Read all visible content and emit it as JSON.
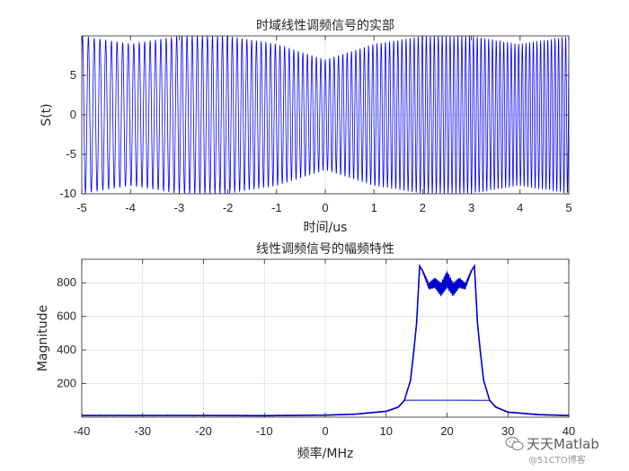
{
  "chart_data": [
    {
      "type": "line",
      "title": "时域线性调频信号的实部",
      "xlabel": "时间/us",
      "ylabel": "S(t)",
      "xlim": [
        -5,
        5
      ],
      "ylim": [
        -10,
        10
      ],
      "xticks": [
        -5,
        -4,
        -3,
        -2,
        -1,
        0,
        1,
        2,
        3,
        4,
        5
      ],
      "yticks": [
        -10,
        -5,
        0,
        5
      ],
      "grid": true,
      "line_color": "#0000ff",
      "series": [
        {
          "signal": "linear-frequency-modulated chirp, real part",
          "amplitude": 10,
          "bandwidth_MHz": 10,
          "center_frequency_MHz": 20,
          "pulse_width_us": 10,
          "x": [
            -5,
            -4,
            -3,
            -2,
            -1,
            0,
            1,
            2,
            3,
            4,
            5
          ],
          "envelope": [
            10,
            9,
            10,
            10,
            9,
            7,
            9,
            10,
            10,
            9,
            10
          ]
        }
      ]
    },
    {
      "type": "line",
      "title": "线性调频信号的幅频特性",
      "xlabel": "频率/MHz",
      "ylabel": "Magnitude",
      "xlim": [
        -40,
        40
      ],
      "ylim": [
        0,
        940
      ],
      "xticks": [
        -40,
        -30,
        -20,
        -10,
        0,
        10,
        20,
        30,
        40
      ],
      "yticks": [
        200,
        400,
        600,
        800
      ],
      "grid": true,
      "line_color": "#0000cc",
      "series": [
        {
          "x": [
            -40,
            -30,
            -20,
            -10,
            0,
            5,
            10,
            12,
            13,
            14,
            14.5,
            15,
            15.5,
            16,
            17,
            18,
            19,
            20,
            21,
            22,
            23,
            24,
            24.5,
            25,
            25.5,
            26,
            27,
            28,
            30,
            35,
            40
          ],
          "y": [
            10,
            10,
            10,
            9,
            12,
            18,
            35,
            60,
            100,
            220,
            380,
            560,
            900,
            870,
            780,
            800,
            760,
            820,
            760,
            800,
            780,
            870,
            900,
            560,
            380,
            220,
            100,
            60,
            30,
            15,
            10
          ]
        }
      ]
    }
  ],
  "watermark": {
    "text": "天天Matlab",
    "subtext": "@51CTO博客",
    "icon": "wechat-icon"
  }
}
